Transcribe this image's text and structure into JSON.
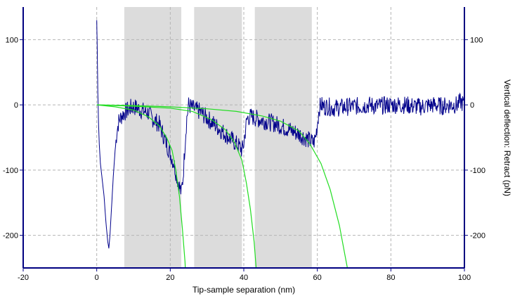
{
  "chart_data": {
    "type": "line",
    "xlabel": "Tip-sample separation (nm)",
    "ylabel_right": "Vertical deflection: Retract (pN)",
    "xlim": [
      -20,
      100
    ],
    "ylim": [
      -250,
      150
    ],
    "x_ticks": [
      -20,
      0,
      20,
      40,
      60,
      80,
      100
    ],
    "y_ticks": [
      -200,
      -100,
      0,
      100
    ],
    "grid": true,
    "shaded_regions": [
      [
        7.5,
        23
      ],
      [
        26.5,
        39.5
      ],
      [
        43,
        58.5
      ]
    ],
    "colors": {
      "data": "#00008b",
      "fit": "#22dd22",
      "shade": "#dcdcdc",
      "axis": "#000080",
      "grid": "#b4b4b4"
    },
    "series": [
      {
        "role": "measured-retract",
        "x": [
          0,
          0.1,
          0.2,
          0.3,
          0.4,
          0.5,
          0.7,
          1,
          1.5,
          2,
          2.5,
          3,
          3.3,
          3.6,
          4,
          4.5,
          5,
          5.5,
          6,
          7,
          8,
          9,
          10,
          11,
          12,
          13,
          14,
          15,
          16,
          17,
          18,
          19,
          20,
          21,
          22,
          22.5,
          23,
          23.5,
          24,
          24.5,
          25,
          26,
          27,
          28,
          29,
          30,
          31,
          32,
          33,
          34,
          35,
          36,
          37,
          38,
          39,
          39.5,
          40,
          40.5,
          41,
          42,
          43,
          44,
          46,
          48,
          50,
          52,
          54,
          56,
          58,
          59,
          59.5,
          60,
          60.5,
          61,
          62,
          63,
          64,
          66,
          68,
          70,
          72,
          74,
          76,
          78,
          80,
          82,
          84,
          86,
          88,
          90,
          92,
          94,
          96,
          98,
          99,
          100
        ],
        "y": [
          130,
          100,
          60,
          20,
          -5,
          -30,
          -60,
          -90,
          -115,
          -140,
          -180,
          -210,
          -220,
          -200,
          -160,
          -110,
          -70,
          -40,
          -25,
          -15,
          -10,
          -5,
          -3,
          -5,
          -8,
          -10,
          -12,
          -20,
          -25,
          -30,
          -45,
          -60,
          -75,
          -90,
          -115,
          -125,
          -135,
          -110,
          -60,
          -20,
          0,
          -5,
          -8,
          -10,
          -15,
          -20,
          -25,
          -30,
          -35,
          -40,
          -45,
          -50,
          -55,
          -60,
          -65,
          -70,
          -60,
          -35,
          -20,
          -18,
          -20,
          -22,
          -25,
          -28,
          -32,
          -37,
          -42,
          -48,
          -55,
          -58,
          -50,
          -30,
          -5,
          0,
          -3,
          -2,
          -5,
          -4,
          -3,
          -2,
          -2,
          0,
          -2,
          -1,
          0,
          0,
          0,
          -2,
          -3,
          -1,
          0,
          -2,
          0,
          0,
          5,
          0
        ]
      },
      {
        "role": "fit-1",
        "x": [
          0,
          5,
          10,
          14,
          17,
          19,
          20.5,
          21.5,
          22.5,
          23.3,
          24,
          24.5
        ],
        "y": [
          0,
          -3,
          -8,
          -18,
          -32,
          -50,
          -70,
          -100,
          -140,
          -190,
          -240,
          -300
        ]
      },
      {
        "role": "fit-2",
        "x": [
          0,
          10,
          20,
          26,
          31,
          35,
          37.5,
          39.5,
          40.7,
          41.8,
          42.8,
          43.5
        ],
        "y": [
          0,
          -2,
          -5,
          -10,
          -22,
          -38,
          -58,
          -85,
          -120,
          -160,
          -210,
          -260
        ]
      },
      {
        "role": "fit-3",
        "x": [
          0,
          10,
          20,
          30,
          38,
          45,
          50,
          55,
          58,
          61,
          63.5,
          66,
          67.5,
          68.5
        ],
        "y": [
          0,
          -1,
          -3,
          -6,
          -10,
          -17,
          -25,
          -40,
          -60,
          -90,
          -130,
          -185,
          -230,
          -260
        ]
      }
    ]
  }
}
